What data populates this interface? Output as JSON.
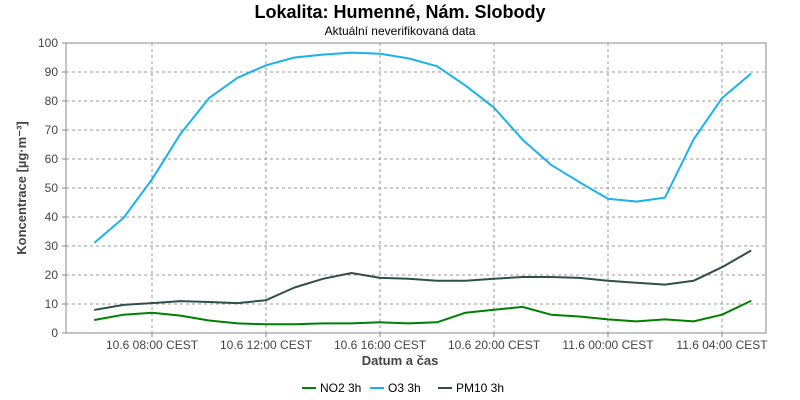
{
  "chart_data": {
    "type": "line",
    "title": "Lokalita: Humenné, Nám. Slobody",
    "subtitle": "Aktuální neverifikovaná data",
    "xlabel": "Datum a čas",
    "ylabel": "Koncentrace [µg·m⁻³]",
    "ylim": [
      0,
      100
    ],
    "yticks": [
      0,
      10,
      20,
      30,
      40,
      50,
      60,
      70,
      80,
      90,
      100
    ],
    "x": [
      "10.6 06:00",
      "10.6 07:00",
      "10.6 08:00",
      "10.6 09:00",
      "10.6 10:00",
      "10.6 11:00",
      "10.6 12:00",
      "10.6 13:00",
      "10.6 14:00",
      "10.6 15:00",
      "10.6 16:00",
      "10.6 17:00",
      "10.6 18:00",
      "10.6 19:00",
      "10.6 20:00",
      "10.6 21:00",
      "10.6 22:00",
      "10.6 23:00",
      "11.6 00:00",
      "11.6 01:00",
      "11.6 02:00",
      "11.6 03:00",
      "11.6 04:00",
      "11.6 05:00"
    ],
    "xtick_labels": [
      "10.6 08:00 CEST",
      "10.6 12:00 CEST",
      "10.6 16:00 CEST",
      "10.6 20:00 CEST",
      "11.6 00:00 CEST",
      "11.6 04:00 CEST"
    ],
    "xtick_positions": [
      2,
      6,
      10,
      14,
      18,
      22
    ],
    "grid": true,
    "legend": "bottom",
    "series": [
      {
        "name": "NO2 3h",
        "color": "#008000",
        "values": [
          4.5,
          6.3,
          7.0,
          6.0,
          4.3,
          3.3,
          3.0,
          3.0,
          3.3,
          3.3,
          3.7,
          3.3,
          3.7,
          7.0,
          8.0,
          9.0,
          6.3,
          5.7,
          4.7,
          4.0,
          4.7,
          4.0,
          6.3,
          11.0
        ]
      },
      {
        "name": "O3 3h",
        "color": "#1ab2ee",
        "values": [
          31.3,
          39.7,
          53.0,
          68.7,
          81.0,
          88.0,
          92.3,
          95.0,
          96.0,
          96.7,
          96.3,
          94.7,
          92.0,
          85.3,
          77.7,
          66.7,
          58.0,
          52.0,
          46.3,
          45.3,
          46.7,
          66.7,
          81.0,
          89.3
        ]
      },
      {
        "name": "PM10 3h",
        "color": "#2f4f4f",
        "values": [
          8.0,
          9.7,
          10.3,
          11.0,
          10.7,
          10.3,
          11.3,
          15.7,
          18.7,
          20.7,
          19.0,
          18.7,
          18.0,
          18.0,
          18.7,
          19.3,
          19.3,
          19.0,
          18.0,
          17.3,
          16.7,
          18.0,
          22.7,
          28.3
        ]
      }
    ]
  }
}
